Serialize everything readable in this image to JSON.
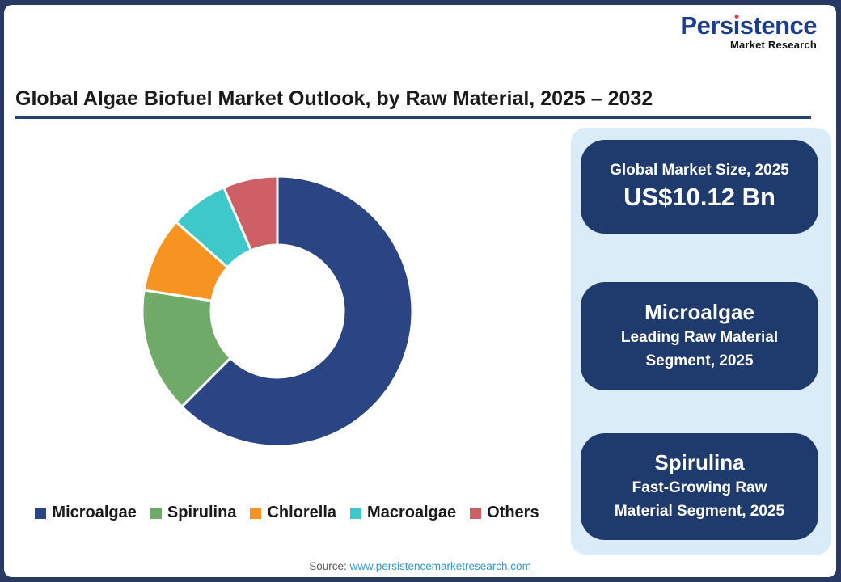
{
  "logo": {
    "brand": "Persistence",
    "subtitle": "Market Research",
    "brand_color": "#1d3d91",
    "dot_color": "#e8393d"
  },
  "header": {
    "title": "Global Algae Biofuel Market Outlook, by Raw Material, 2025 – 2032",
    "underline_color": "#24426e"
  },
  "chart_data": {
    "type": "pie",
    "subtype": "donut",
    "title": "Global Algae Biofuel Market Outlook, by Raw Material, 2025 – 2032",
    "categories": [
      "Microalgae",
      "Spirulina",
      "Chlorella",
      "Macroalgae",
      "Others"
    ],
    "values": [
      62.5,
      15,
      9,
      7,
      6.5
    ],
    "unit": "% share (estimated from arc angles; no data labels shown)",
    "colors": [
      "#2a4484",
      "#6faa68",
      "#f79421",
      "#3fc8c9",
      "#cf5f66"
    ],
    "donut_hole_ratio": 0.49,
    "start_angle_deg": 0,
    "direction": "clockwise",
    "legend_position": "bottom",
    "data_labels": "none"
  },
  "info_panel": {
    "background": "#d9ecf8",
    "card_background": "#1f3a6d",
    "cards": [
      {
        "heading": "Global Market Size, 2025",
        "value": "US$10.12 Bn"
      },
      {
        "heading": "Microalgae",
        "subtitle": "Leading Raw Material Segment, 2025"
      },
      {
        "heading": "Spirulina",
        "subtitle": "Fast-Growing Raw Material Segment, 2025"
      }
    ]
  },
  "footer": {
    "source_label": "Source:",
    "source_link": "www.persistencemarketresearch.com"
  }
}
